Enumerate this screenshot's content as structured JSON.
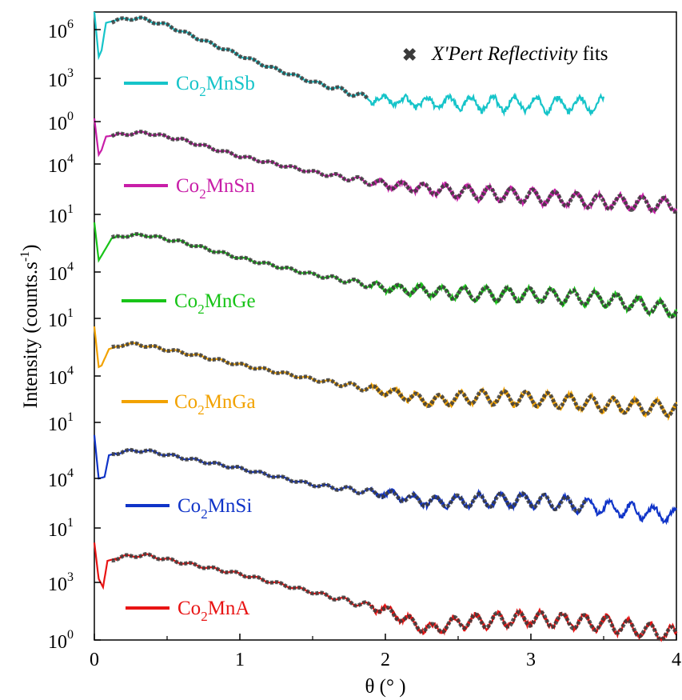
{
  "chart_data": {
    "type": "line",
    "scale": "log",
    "xlabel": "θ (° )",
    "ylabel": "Intensity (counts.s",
    "ylabel_sup": "-1",
    "ylabel_close": ")",
    "xlim": [
      0,
      4
    ],
    "x_ticks": [
      "0",
      "1",
      "2",
      "3",
      "4"
    ],
    "legend_fit": {
      "label_italic": "X'Pert Reflectivity",
      "label_rest": " fits",
      "color": "#3b3b3b",
      "marker": "x"
    },
    "series": [
      {
        "name": "Co2MnSb",
        "label_main": "Co",
        "label_sub": "2",
        "label_tail": "MnSb",
        "color": "#16c4c9",
        "y_ticks": [
          {
            "base": "10",
            "exp": "6",
            "value": 6
          },
          {
            "base": "10",
            "exp": "3",
            "value": 3
          },
          {
            "base": "10",
            "exp": "0",
            "value": 0
          }
        ],
        "ylim": [
          -0.2,
          6.2
        ],
        "data_end": 3.5,
        "fit_end": 1.88,
        "points": [
          [
            0,
            6.2
          ],
          [
            0.03,
            3.5
          ],
          [
            0.05,
            3.9
          ],
          [
            0.08,
            5.55
          ],
          [
            0.15,
            5.7
          ],
          [
            0.3,
            5.85
          ],
          [
            0.5,
            5.4
          ],
          [
            0.8,
            4.3
          ],
          [
            1.0,
            3.6
          ],
          [
            1.2,
            2.9
          ],
          [
            1.5,
            2.0
          ],
          [
            1.7,
            1.5
          ],
          [
            1.88,
            1.0
          ],
          [
            2.2,
            0.75
          ],
          [
            3.0,
            0.65
          ],
          [
            3.5,
            0.6
          ]
        ]
      },
      {
        "name": "Co2MnSn",
        "label_main": "Co",
        "label_sub": "2",
        "label_tail": "MnSn",
        "color": "#c81ea8",
        "y_ticks": [
          {
            "base": "10",
            "exp": "4",
            "value": 4
          },
          {
            "base": "10",
            "exp": "1",
            "value": 1
          }
        ],
        "ylim": [
          0.2,
          6.8
        ],
        "data_end": 4.0,
        "fit_end": 4.0,
        "points": [
          [
            0,
            6.8
          ],
          [
            0.03,
            4.5
          ],
          [
            0.05,
            4.8
          ],
          [
            0.08,
            5.65
          ],
          [
            0.2,
            5.8
          ],
          [
            0.35,
            5.9
          ],
          [
            0.6,
            5.45
          ],
          [
            1.0,
            4.4
          ],
          [
            1.5,
            3.4
          ],
          [
            2.0,
            2.6
          ],
          [
            2.5,
            2.15
          ],
          [
            3.0,
            1.85
          ],
          [
            3.5,
            1.5
          ],
          [
            4.0,
            1.3
          ]
        ]
      },
      {
        "name": "Co2MnGe",
        "label_main": "Co",
        "label_sub": "2",
        "label_tail": "MnGe",
        "color": "#18c418",
        "y_ticks": [
          {
            "base": "10",
            "exp": "4",
            "value": 4
          },
          {
            "base": "10",
            "exp": "1",
            "value": 1
          }
        ],
        "ylim": [
          0.0,
          6.6
        ],
        "data_end": 4.0,
        "fit_end": 4.0,
        "points": [
          [
            0,
            6.6
          ],
          [
            0.03,
            4.2
          ],
          [
            0.05,
            4.5
          ],
          [
            0.12,
            5.6
          ],
          [
            0.2,
            5.75
          ],
          [
            0.35,
            5.8
          ],
          [
            0.6,
            5.35
          ],
          [
            1.0,
            4.35
          ],
          [
            1.5,
            3.3
          ],
          [
            2.0,
            2.45
          ],
          [
            2.5,
            2.1
          ],
          [
            3.0,
            2.0
          ],
          [
            3.5,
            1.75
          ],
          [
            4.0,
            1.0
          ]
        ]
      },
      {
        "name": "Co2MnGa",
        "label_main": "Co",
        "label_sub": "2",
        "label_tail": "MnGa",
        "color": "#f2a200",
        "y_ticks": [
          {
            "base": "10",
            "exp": "4",
            "value": 4
          },
          {
            "base": "10",
            "exp": "1",
            "value": 1
          }
        ],
        "ylim": [
          0.3,
          6.7
        ],
        "data_end": 4.0,
        "fit_end": 4.0,
        "points": [
          [
            0,
            6.7
          ],
          [
            0.03,
            4.2
          ],
          [
            0.05,
            4.3
          ],
          [
            0.1,
            5.3
          ],
          [
            0.2,
            5.6
          ],
          [
            0.3,
            5.6
          ],
          [
            0.6,
            5.1
          ],
          [
            1.0,
            4.35
          ],
          [
            1.5,
            3.45
          ],
          [
            2.0,
            2.7
          ],
          [
            2.3,
            2.1
          ],
          [
            2.6,
            2.35
          ],
          [
            3.0,
            2.25
          ],
          [
            3.5,
            1.9
          ],
          [
            4.0,
            1.6
          ]
        ]
      },
      {
        "name": "Co2MnSi",
        "label_main": "Co",
        "label_sub": "2",
        "label_tail": "MnSi",
        "color": "#1034c8",
        "y_ticks": [
          {
            "base": "10",
            "exp": "4",
            "value": 4
          },
          {
            "base": "10",
            "exp": "1",
            "value": 1
          }
        ],
        "ylim": [
          0.2,
          6.9
        ],
        "data_end": 4.0,
        "fit_end": 3.38,
        "points": [
          [
            0,
            6.6
          ],
          [
            0.03,
            3.8
          ],
          [
            0.07,
            3.9
          ],
          [
            0.1,
            5.3
          ],
          [
            0.2,
            5.55
          ],
          [
            0.35,
            5.6
          ],
          [
            0.6,
            5.15
          ],
          [
            1.0,
            4.45
          ],
          [
            1.5,
            3.4
          ],
          [
            2.0,
            2.8
          ],
          [
            2.3,
            2.3
          ],
          [
            2.7,
            2.4
          ],
          [
            3.0,
            2.4
          ],
          [
            3.5,
            1.95
          ],
          [
            4.0,
            1.4
          ]
        ]
      },
      {
        "name": "Co2MnA",
        "label_main": "Co",
        "label_sub": "2",
        "label_tail": "MnA",
        "color": "#e81414",
        "y_ticks": [
          {
            "base": "10",
            "exp": "3",
            "value": 3
          },
          {
            "base": "10",
            "exp": "0",
            "value": 0
          }
        ],
        "ylim": [
          -0.2,
          6.2
        ],
        "data_end": 4.0,
        "fit_end": 4.0,
        "points": [
          [
            0,
            5.7
          ],
          [
            0.03,
            3.5
          ],
          [
            0.06,
            3.0
          ],
          [
            0.09,
            4.6
          ],
          [
            0.2,
            4.85
          ],
          [
            0.35,
            4.95
          ],
          [
            0.6,
            4.5
          ],
          [
            1.0,
            3.8
          ],
          [
            1.5,
            2.7
          ],
          [
            2.0,
            1.6
          ],
          [
            2.3,
            0.4
          ],
          [
            2.5,
            0.9
          ],
          [
            3.0,
            1.1
          ],
          [
            3.5,
            0.8
          ],
          [
            4.0,
            0.1
          ]
        ]
      }
    ]
  }
}
